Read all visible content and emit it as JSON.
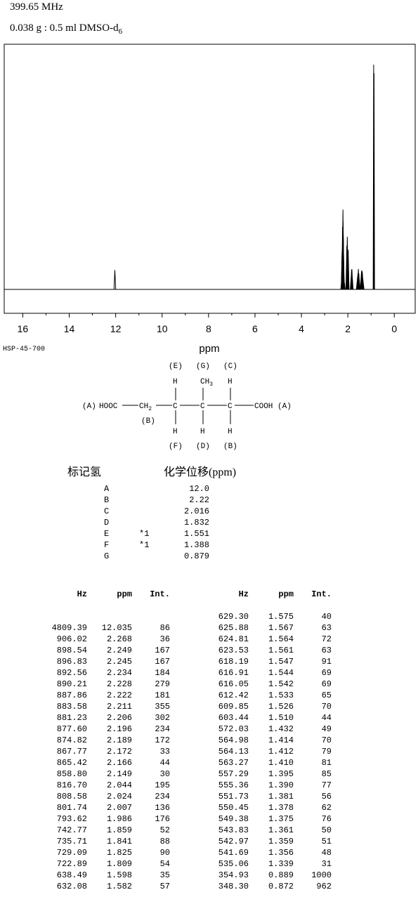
{
  "header": {
    "frequency": "399.65 MHz",
    "sample_main": "0.038 g : 0.5 ml DMSO-d",
    "sample_sub": "6"
  },
  "chart_data": {
    "type": "line",
    "xlabel": "ppm",
    "xlim": [
      16.8,
      -0.9
    ],
    "x_reversed": true,
    "ticks": [
      16,
      14,
      12,
      10,
      8,
      6,
      4,
      2,
      0
    ],
    "grid": false,
    "peaks": [
      {
        "ppm": 12.035,
        "int": 86
      },
      {
        "ppm": 2.268,
        "int": 36
      },
      {
        "ppm": 2.249,
        "int": 167
      },
      {
        "ppm": 2.245,
        "int": 167
      },
      {
        "ppm": 2.234,
        "int": 184
      },
      {
        "ppm": 2.228,
        "int": 279
      },
      {
        "ppm": 2.222,
        "int": 181
      },
      {
        "ppm": 2.211,
        "int": 355
      },
      {
        "ppm": 2.206,
        "int": 302
      },
      {
        "ppm": 2.196,
        "int": 234
      },
      {
        "ppm": 2.189,
        "int": 172
      },
      {
        "ppm": 2.172,
        "int": 33
      },
      {
        "ppm": 2.166,
        "int": 44
      },
      {
        "ppm": 2.149,
        "int": 30
      },
      {
        "ppm": 2.044,
        "int": 195
      },
      {
        "ppm": 2.024,
        "int": 234
      },
      {
        "ppm": 2.007,
        "int": 136
      },
      {
        "ppm": 1.986,
        "int": 176
      },
      {
        "ppm": 1.859,
        "int": 52
      },
      {
        "ppm": 1.841,
        "int": 88
      },
      {
        "ppm": 1.825,
        "int": 90
      },
      {
        "ppm": 1.809,
        "int": 54
      },
      {
        "ppm": 1.598,
        "int": 35
      },
      {
        "ppm": 1.582,
        "int": 57
      },
      {
        "ppm": 1.575,
        "int": 40
      },
      {
        "ppm": 1.567,
        "int": 63
      },
      {
        "ppm": 1.564,
        "int": 72
      },
      {
        "ppm": 1.561,
        "int": 63
      },
      {
        "ppm": 1.547,
        "int": 91
      },
      {
        "ppm": 1.544,
        "int": 69
      },
      {
        "ppm": 1.542,
        "int": 69
      },
      {
        "ppm": 1.533,
        "int": 65
      },
      {
        "ppm": 1.526,
        "int": 70
      },
      {
        "ppm": 1.51,
        "int": 44
      },
      {
        "ppm": 1.432,
        "int": 49
      },
      {
        "ppm": 1.414,
        "int": 70
      },
      {
        "ppm": 1.412,
        "int": 79
      },
      {
        "ppm": 1.41,
        "int": 81
      },
      {
        "ppm": 1.395,
        "int": 85
      },
      {
        "ppm": 1.39,
        "int": 77
      },
      {
        "ppm": 1.381,
        "int": 56
      },
      {
        "ppm": 1.378,
        "int": 62
      },
      {
        "ppm": 1.375,
        "int": 76
      },
      {
        "ppm": 1.361,
        "int": 50
      },
      {
        "ppm": 1.359,
        "int": 51
      },
      {
        "ppm": 1.356,
        "int": 48
      },
      {
        "ppm": 1.339,
        "int": 31
      },
      {
        "ppm": 0.889,
        "int": 1000
      },
      {
        "ppm": 0.872,
        "int": 962
      }
    ]
  },
  "spectrum_code": "HSP-45-700",
  "structure": {
    "label_E": "(E)",
    "label_G": "(G)",
    "label_C_top": "(C)",
    "label_A_left": "(A)",
    "hooc": "HOOC",
    "ch2": "CH",
    "ch2_sub": "2",
    "c": "C",
    "h": "H",
    "ch3": "CH",
    "ch3_sub": "3",
    "cooh": "COOH",
    "label_A_right": "(A)",
    "label_B_mid": "(B)",
    "label_F": "(F)",
    "label_D": "(D)",
    "label_B_bottom": "(B)"
  },
  "assignment": {
    "col_label": "标记氢",
    "col_shift": "化学位移(ppm)",
    "rows": [
      {
        "label": "A",
        "note": "",
        "shift": "12.0"
      },
      {
        "label": "B",
        "note": "",
        "shift": "2.22"
      },
      {
        "label": "C",
        "note": "",
        "shift": "2.016"
      },
      {
        "label": "D",
        "note": "",
        "shift": "1.832"
      },
      {
        "label": "E",
        "note": "*1",
        "shift": "1.551"
      },
      {
        "label": "F",
        "note": "*1",
        "shift": "1.388"
      },
      {
        "label": "G",
        "note": "",
        "shift": "0.879"
      }
    ]
  },
  "peak_table": {
    "headers": {
      "hz": "Hz",
      "ppm": "ppm",
      "int": "Int."
    },
    "left": [
      [
        "",
        "",
        ""
      ],
      [
        "4809.39",
        "12.035",
        "86"
      ],
      [
        "906.02",
        "2.268",
        "36"
      ],
      [
        "898.54",
        "2.249",
        "167"
      ],
      [
        "896.83",
        "2.245",
        "167"
      ],
      [
        "892.56",
        "2.234",
        "184"
      ],
      [
        "890.21",
        "2.228",
        "279"
      ],
      [
        "887.86",
        "2.222",
        "181"
      ],
      [
        "883.58",
        "2.211",
        "355"
      ],
      [
        "881.23",
        "2.206",
        "302"
      ],
      [
        "877.60",
        "2.196",
        "234"
      ],
      [
        "874.82",
        "2.189",
        "172"
      ],
      [
        "867.77",
        "2.172",
        "33"
      ],
      [
        "865.42",
        "2.166",
        "44"
      ],
      [
        "858.80",
        "2.149",
        "30"
      ],
      [
        "816.70",
        "2.044",
        "195"
      ],
      [
        "808.58",
        "2.024",
        "234"
      ],
      [
        "801.74",
        "2.007",
        "136"
      ],
      [
        "793.62",
        "1.986",
        "176"
      ],
      [
        "742.77",
        "1.859",
        "52"
      ],
      [
        "735.71",
        "1.841",
        "88"
      ],
      [
        "729.09",
        "1.825",
        "90"
      ],
      [
        "722.89",
        "1.809",
        "54"
      ],
      [
        "638.49",
        "1.598",
        "35"
      ],
      [
        "632.08",
        "1.582",
        "57"
      ]
    ],
    "right": [
      [
        "629.30",
        "1.575",
        "40"
      ],
      [
        "625.88",
        "1.567",
        "63"
      ],
      [
        "624.81",
        "1.564",
        "72"
      ],
      [
        "623.53",
        "1.561",
        "63"
      ],
      [
        "618.19",
        "1.547",
        "91"
      ],
      [
        "616.91",
        "1.544",
        "69"
      ],
      [
        "616.05",
        "1.542",
        "69"
      ],
      [
        "612.42",
        "1.533",
        "65"
      ],
      [
        "609.85",
        "1.526",
        "70"
      ],
      [
        "603.44",
        "1.510",
        "44"
      ],
      [
        "572.03",
        "1.432",
        "49"
      ],
      [
        "564.98",
        "1.414",
        "70"
      ],
      [
        "564.13",
        "1.412",
        "79"
      ],
      [
        "563.27",
        "1.410",
        "81"
      ],
      [
        "557.29",
        "1.395",
        "85"
      ],
      [
        "555.36",
        "1.390",
        "77"
      ],
      [
        "551.73",
        "1.381",
        "56"
      ],
      [
        "550.45",
        "1.378",
        "62"
      ],
      [
        "549.38",
        "1.375",
        "76"
      ],
      [
        "543.83",
        "1.361",
        "50"
      ],
      [
        "542.97",
        "1.359",
        "51"
      ],
      [
        "541.69",
        "1.356",
        "48"
      ],
      [
        "535.06",
        "1.339",
        "31"
      ],
      [
        "354.93",
        "0.889",
        "1000"
      ],
      [
        "348.30",
        "0.872",
        "962"
      ]
    ]
  }
}
